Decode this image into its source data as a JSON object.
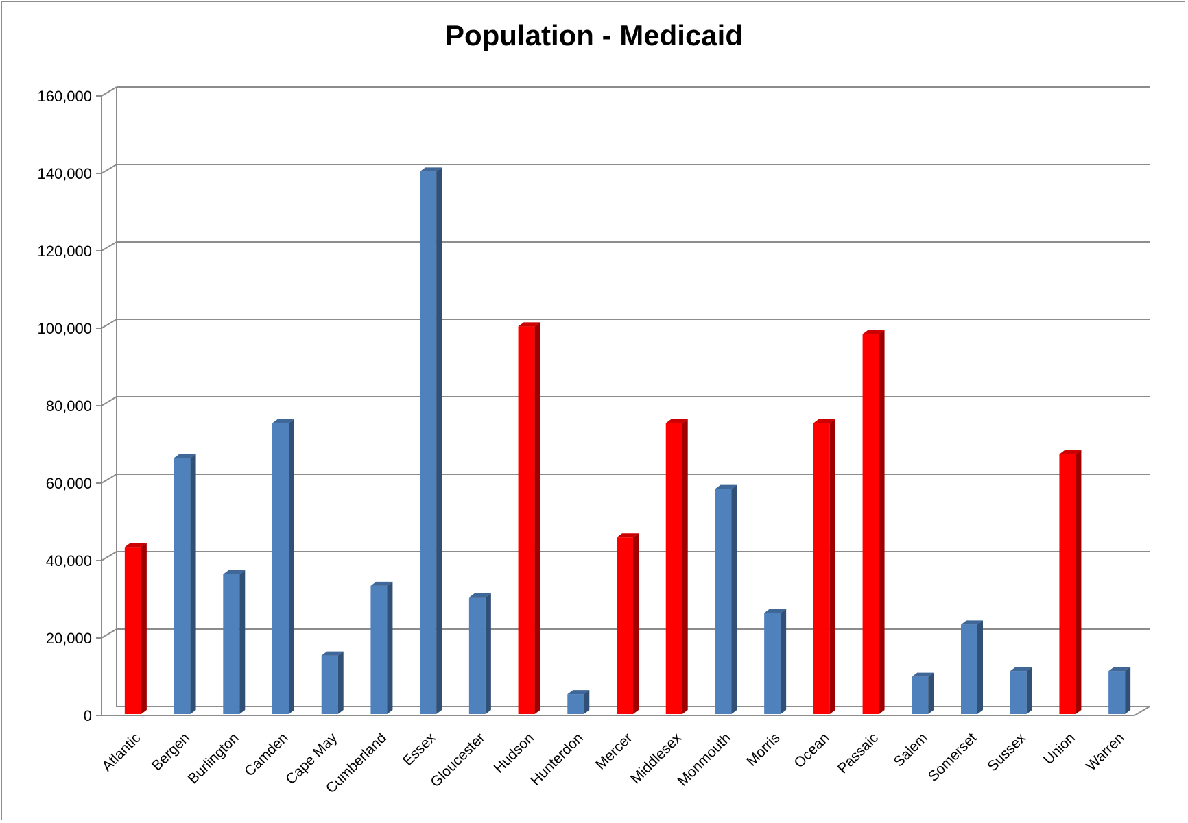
{
  "chart_data": {
    "type": "bar",
    "title": "Population - Medicaid",
    "xlabel": "",
    "ylabel": "",
    "ylim": [
      0,
      160000
    ],
    "y_ticks": [
      "0",
      "20,000",
      "40,000",
      "60,000",
      "80,000",
      "100,000",
      "120,000",
      "140,000",
      "160,000"
    ],
    "grid": true,
    "legend": "none",
    "colors": {
      "blue": "#4f81bd",
      "red": "#ff0000"
    },
    "categories": [
      "Atlantic",
      "Bergen",
      "Burlington",
      "Camden",
      "Cape May",
      "Cumberland",
      "Essex",
      "Gloucester",
      "Hudson",
      "Hunterdon",
      "Mercer",
      "Middlesex",
      "Monmouth",
      "Morris",
      "Ocean",
      "Passaic",
      "Salem",
      "Somerset",
      "Sussex",
      "Union",
      "Warren"
    ],
    "values": [
      44000,
      67000,
      37000,
      76000,
      16000,
      34000,
      141000,
      31000,
      101000,
      6000,
      46500,
      76000,
      59000,
      27000,
      76000,
      99000,
      10500,
      24000,
      12000,
      68000,
      12000
    ],
    "bar_colors": [
      "red",
      "blue",
      "blue",
      "blue",
      "blue",
      "blue",
      "blue",
      "blue",
      "red",
      "blue",
      "red",
      "red",
      "blue",
      "blue",
      "red",
      "red",
      "blue",
      "blue",
      "blue",
      "red",
      "blue"
    ]
  }
}
